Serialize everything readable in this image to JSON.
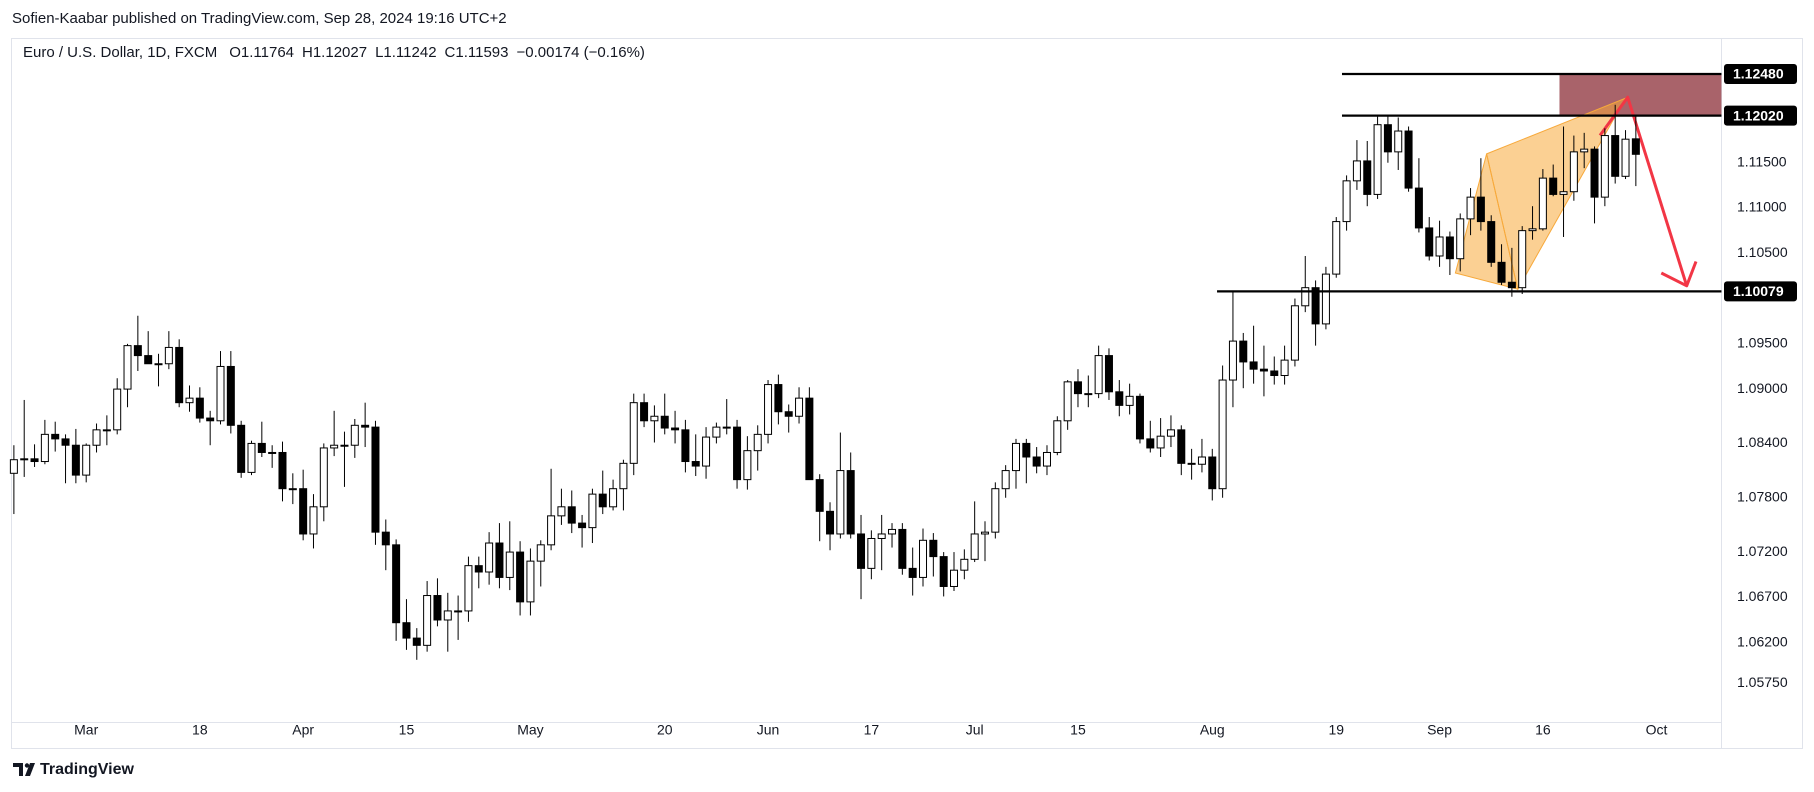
{
  "header": {
    "published": "Sofien-Kaabar published on TradingView.com, Sep 28, 2024 19:16 UTC+2"
  },
  "chart_data": {
    "type": "candlestick",
    "symbol": "Euro / U.S. Dollar, 1D, FXCM",
    "ohlc_legend": [
      {
        "key": "O",
        "value": "1.11764"
      },
      {
        "key": "H",
        "value": "1.12027"
      },
      {
        "key": "L",
        "value": "1.11242"
      },
      {
        "key": "C",
        "value": "1.11593"
      }
    ],
    "change": "−0.00174 (−0.16%)",
    "categories": [
      null,
      null,
      null,
      null,
      null,
      null,
      null,
      "Mar",
      null,
      null,
      null,
      null,
      null,
      null,
      null,
      null,
      null,
      null,
      "18",
      null,
      null,
      null,
      null,
      null,
      null,
      null,
      null,
      null,
      "Apr",
      null,
      null,
      null,
      null,
      null,
      null,
      null,
      null,
      null,
      "15",
      null,
      null,
      null,
      null,
      null,
      null,
      null,
      null,
      null,
      null,
      null,
      "May",
      null,
      null,
      null,
      null,
      null,
      null,
      null,
      null,
      null,
      null,
      null,
      null,
      "20",
      null,
      null,
      null,
      null,
      null,
      null,
      null,
      null,
      null,
      "Jun",
      null,
      null,
      null,
      null,
      null,
      null,
      null,
      null,
      null,
      "17",
      null,
      null,
      null,
      null,
      null,
      null,
      null,
      null,
      null,
      "Jul",
      null,
      null,
      null,
      null,
      null,
      null,
      null,
      null,
      null,
      "15",
      null,
      null,
      null,
      null,
      null,
      null,
      null,
      null,
      null,
      null,
      null,
      null,
      "Aug",
      null,
      null,
      null,
      null,
      null,
      null,
      null,
      null,
      null,
      null,
      null,
      "19",
      null,
      null,
      null,
      null,
      null,
      null,
      null,
      null,
      null,
      "Sep",
      null,
      null,
      null,
      null,
      null,
      null,
      null,
      null,
      null,
      "16",
      null,
      null,
      null,
      null,
      null,
      null,
      null,
      null,
      null,
      null,
      "Oct",
      null,
      null,
      null,
      null,
      null
    ],
    "open": [
      1.0807,
      1.0822,
      1.0823,
      1.082,
      1.085,
      1.0845,
      1.0838,
      1.0805,
      1.0838,
      1.0855,
      1.0855,
      1.09,
      1.0948,
      1.0937,
      1.0928,
      1.0928,
      1.0946,
      1.0885,
      1.089,
      1.0868,
      1.0865,
      1.0925,
      1.086,
      1.0808,
      1.084,
      1.083,
      1.083,
      1.079,
      1.079,
      1.074,
      1.077,
      1.0835,
      1.0838,
      1.0838,
      1.086,
      1.0858,
      1.0742,
      1.0728,
      1.0642,
      1.0625,
      1.0617,
      1.0672,
      1.0645,
      1.0655,
      1.0655,
      1.0705,
      1.0698,
      1.073,
      1.0692,
      1.072,
      1.0665,
      1.071,
      1.0728,
      1.076,
      1.077,
      1.0752,
      1.0747,
      1.0784,
      1.077,
      1.079,
      1.0818,
      1.0885,
      1.0865,
      1.087,
      1.0857,
      1.0855,
      1.082,
      1.0815,
      1.0847,
      1.0858,
      1.0858,
      1.08,
      1.0832,
      1.085,
      1.0905,
      1.0875,
      1.087,
      1.089,
      1.08,
      1.0765,
      1.074,
      1.081,
      1.074,
      1.0702,
      1.0735,
      1.074,
      1.0745,
      1.0702,
      1.0692,
      1.0733,
      1.0715,
      1.0682,
      1.07,
      1.0712,
      1.074,
      1.0742,
      1.079,
      1.081,
      1.084,
      1.0825,
      1.0815,
      1.083,
      1.0865,
      1.0908,
      1.0895,
      1.0895,
      1.0937,
      1.0897,
      1.0882,
      1.0892,
      1.0845,
      1.0835,
      1.0848,
      1.0855,
      1.0818,
      1.0817,
      1.0825,
      1.079,
      1.091,
      1.0953,
      1.093,
      1.0922,
      1.092,
      1.0915,
      1.0932,
      1.0992,
      1.1012,
      1.0972,
      1.1027,
      1.1085,
      1.113,
      1.1152,
      1.1115,
      1.1192,
      1.1162,
      1.1185,
      1.1122,
      1.1078,
      1.1047,
      1.1068,
      1.1044,
      1.1088,
      1.1112,
      1.1085,
      1.104,
      1.1018,
      1.1012,
      1.1075,
      1.1077,
      1.1133,
      1.1115,
      1.1118,
      1.1162,
      1.1165,
      1.1112,
      1.118,
      1.1135,
      1.11764,
      null,
      null,
      null,
      null,
      null,
      null,
      null
    ],
    "high": [
      1.0838,
      1.0888,
      1.0839,
      1.0866,
      1.0864,
      1.085,
      1.0856,
      1.084,
      1.0862,
      1.0871,
      1.0912,
      1.095,
      1.0981,
      1.0964,
      1.0939,
      1.0964,
      1.0955,
      1.0904,
      1.0902,
      1.0876,
      1.0942,
      1.0942,
      1.0865,
      1.0843,
      1.0864,
      1.0838,
      1.0842,
      1.0807,
      1.0811,
      1.0784,
      1.084,
      1.0876,
      1.0853,
      1.0867,
      1.0885,
      1.0865,
      1.0756,
      1.0734,
      1.0668,
      1.0636,
      1.0688,
      1.0691,
      1.0675,
      1.0672,
      1.0715,
      1.0715,
      1.0742,
      1.0752,
      1.0754,
      1.0732,
      1.0724,
      1.0733,
      1.0812,
      1.079,
      1.0788,
      1.0761,
      1.079,
      1.081,
      1.08,
      1.0822,
      1.0895,
      1.0895,
      1.0882,
      1.0895,
      1.0876,
      1.0866,
      1.085,
      1.0858,
      1.0863,
      1.0889,
      1.0866,
      1.0848,
      1.086,
      1.091,
      1.0916,
      1.0883,
      1.0902,
      1.0902,
      1.0806,
      1.0775,
      1.0852,
      1.083,
      1.0761,
      1.0744,
      1.0761,
      1.0752,
      1.0752,
      1.0725,
      1.0746,
      1.0741,
      1.072,
      1.072,
      1.0723,
      1.0776,
      1.0754,
      1.0797,
      1.0816,
      1.0845,
      1.0845,
      1.0836,
      1.0838,
      1.087,
      1.091,
      1.0922,
      1.0915,
      1.0948,
      1.0945,
      1.091,
      1.0906,
      1.0895,
      1.0865,
      1.0868,
      1.0871,
      1.086,
      1.0834,
      1.0845,
      1.0834,
      1.0926,
      1.1008,
      1.0962,
      1.097,
      1.0948,
      1.0936,
      1.0948,
      1.1,
      1.1047,
      1.102,
      1.1035,
      1.109,
      1.1136,
      1.1175,
      1.1174,
      1.1201,
      1.1202,
      1.12,
      1.119,
      1.1155,
      1.109,
      1.1086,
      1.1074,
      1.1094,
      1.1122,
      1.1155,
      1.1092,
      1.106,
      1.1056,
      1.108,
      1.1102,
      1.1143,
      1.1148,
      1.119,
      1.118,
      1.1183,
      1.1168,
      1.1188,
      1.1214,
      1.1186,
      1.12027,
      null,
      null,
      null,
      null,
      null,
      null,
      null
    ],
    "low": [
      1.0762,
      1.0803,
      1.0814,
      1.0817,
      1.0831,
      1.0796,
      1.0796,
      1.0797,
      1.083,
      1.0838,
      1.085,
      1.088,
      1.092,
      1.0928,
      1.0903,
      1.0922,
      1.088,
      1.0875,
      1.0863,
      1.0838,
      1.0861,
      1.0851,
      1.0802,
      1.0805,
      1.0825,
      1.0813,
      1.0776,
      1.0773,
      1.0733,
      1.0724,
      1.0754,
      1.0826,
      1.0792,
      1.0824,
      1.0836,
      1.0728,
      1.07,
      1.0622,
      1.0612,
      1.0601,
      1.061,
      1.0638,
      1.061,
      1.0623,
      1.0643,
      1.068,
      1.0684,
      1.068,
      1.0678,
      1.065,
      1.065,
      1.0682,
      1.0722,
      1.075,
      1.0741,
      1.0725,
      1.073,
      1.0762,
      1.0766,
      1.0766,
      1.0805,
      1.0858,
      1.0841,
      1.085,
      1.084,
      1.0808,
      1.0804,
      1.0801,
      1.084,
      1.085,
      1.079,
      1.0789,
      1.081,
      1.084,
      1.0861,
      1.0852,
      1.0862,
      1.08,
      1.0732,
      1.0722,
      1.0735,
      1.0735,
      1.0668,
      1.069,
      1.07,
      1.0725,
      1.0695,
      1.0672,
      1.0682,
      1.0693,
      1.0671,
      1.0677,
      1.069,
      1.0709,
      1.071,
      1.0735,
      1.078,
      1.079,
      1.0796,
      1.0807,
      1.0805,
      1.0827,
      1.0855,
      1.088,
      1.088,
      1.089,
      1.0888,
      1.087,
      1.0872,
      1.084,
      1.083,
      1.0825,
      1.0836,
      1.0805,
      1.08,
      1.0808,
      1.0777,
      1.078,
      1.088,
      1.0901,
      1.0906,
      1.0892,
      1.0905,
      1.0905,
      1.0925,
      1.0985,
      1.0948,
      1.0966,
      1.1023,
      1.1075,
      1.112,
      1.1102,
      1.111,
      1.115,
      1.1142,
      1.1118,
      1.1073,
      1.1042,
      1.1035,
      1.1026,
      1.103,
      1.107,
      1.1075,
      1.1035,
      1.1015,
      1.1002,
      1.1005,
      1.1065,
      1.1075,
      1.1113,
      1.1068,
      1.1108,
      1.1144,
      1.1083,
      1.1102,
      1.1127,
      1.1132,
      1.11242,
      null,
      null,
      null,
      null,
      null,
      null,
      null
    ],
    "close": [
      1.0822,
      1.0823,
      1.082,
      1.085,
      1.0845,
      1.0838,
      1.0805,
      1.0838,
      1.0855,
      1.0855,
      1.09,
      1.0948,
      1.0937,
      1.0928,
      1.0928,
      1.0946,
      1.0885,
      1.089,
      1.0868,
      1.0865,
      1.0925,
      1.086,
      1.0808,
      1.084,
      1.083,
      1.083,
      1.079,
      1.079,
      1.074,
      1.077,
      1.0835,
      1.0838,
      1.0838,
      1.086,
      1.0858,
      1.0742,
      1.0728,
      1.0642,
      1.0625,
      1.0617,
      1.0672,
      1.0645,
      1.0655,
      1.0655,
      1.0705,
      1.0698,
      1.073,
      1.0692,
      1.072,
      1.0665,
      1.071,
      1.0728,
      1.076,
      1.077,
      1.0752,
      1.0747,
      1.0784,
      1.077,
      1.079,
      1.0818,
      1.0885,
      1.0865,
      1.087,
      1.0857,
      1.0855,
      1.082,
      1.0815,
      1.0847,
      1.0858,
      1.0858,
      1.08,
      1.0832,
      1.085,
      1.0905,
      1.0875,
      1.087,
      1.089,
      1.08,
      1.0765,
      1.074,
      1.081,
      1.074,
      1.0702,
      1.0735,
      1.074,
      1.0745,
      1.0702,
      1.0692,
      1.0733,
      1.0715,
      1.0682,
      1.07,
      1.0712,
      1.074,
      1.0742,
      1.079,
      1.081,
      1.084,
      1.0825,
      1.0815,
      1.083,
      1.0865,
      1.0908,
      1.0895,
      1.0895,
      1.0937,
      1.0897,
      1.0882,
      1.0892,
      1.0845,
      1.0835,
      1.0848,
      1.0855,
      1.0818,
      1.0817,
      1.0825,
      1.079,
      1.091,
      1.0953,
      1.093,
      1.0922,
      1.092,
      1.0915,
      1.0932,
      1.0992,
      1.1012,
      1.0972,
      1.1027,
      1.1085,
      1.113,
      1.1152,
      1.1115,
      1.1192,
      1.1162,
      1.1185,
      1.1122,
      1.1078,
      1.1047,
      1.1068,
      1.1044,
      1.1088,
      1.1112,
      1.1085,
      1.104,
      1.1018,
      1.1012,
      1.1075,
      1.1077,
      1.1133,
      1.1115,
      1.1118,
      1.1162,
      1.1165,
      1.1112,
      1.118,
      1.1135,
      1.1176,
      1.11593,
      null,
      null,
      null,
      null,
      null,
      null,
      null
    ],
    "up_color": "#ffffff",
    "down_color": "#000000",
    "wick_color": "#000000",
    "ylim": [
      1.0535,
      1.1285
    ],
    "yticks": [
      {
        "value": 1.0575,
        "label": "1.05750"
      },
      {
        "value": 1.062,
        "label": "1.06200"
      },
      {
        "value": 1.067,
        "label": "1.06700"
      },
      {
        "value": 1.072,
        "label": "1.07200"
      },
      {
        "value": 1.078,
        "label": "1.07800"
      },
      {
        "value": 1.084,
        "label": "1.08400"
      },
      {
        "value": 1.09,
        "label": "1.09000"
      },
      {
        "value": 1.095,
        "label": "1.09500"
      },
      {
        "value": 1.105,
        "label": "1.10500"
      },
      {
        "value": 1.11,
        "label": "1.11000"
      },
      {
        "value": 1.115,
        "label": "1.11500"
      }
    ],
    "grid": false,
    "levels": [
      {
        "value": 1.1248,
        "label": "1.12480"
      },
      {
        "value": 1.1202,
        "label": "1.12020"
      },
      {
        "value": 1.10079,
        "label": "1.10079"
      }
    ],
    "level_color": "#000000",
    "zone_color": "#a0525a",
    "pattern_color": "#f7a93b",
    "arrow_color": "#f23645"
  },
  "footer": {
    "brand": "TradingView"
  }
}
